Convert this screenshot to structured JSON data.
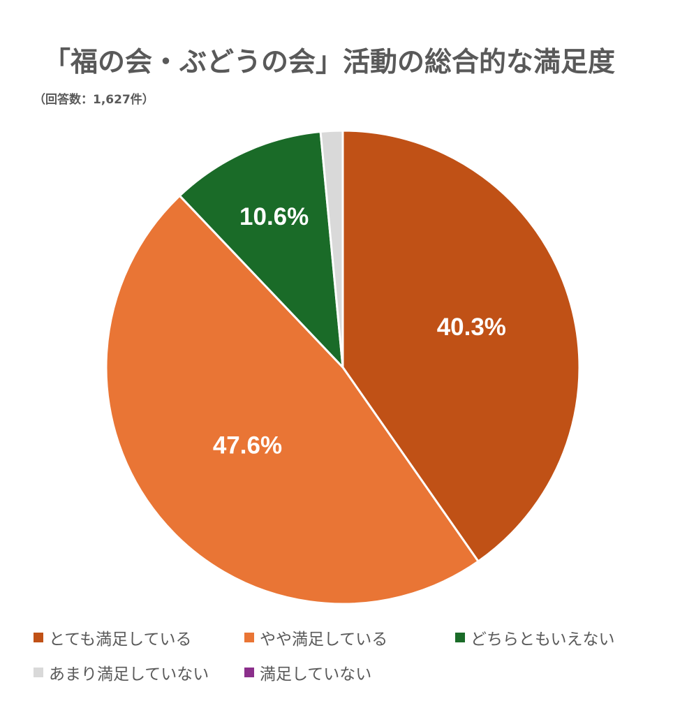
{
  "title": "「福の会・ぶどうの会」活動の総合的な満足度",
  "subtitle": "（回答数：1,627件）",
  "chart_data": {
    "type": "pie",
    "title": "「福の会・ぶどうの会」活動の総合的な満足度",
    "subtitle": "（回答数：1,627件）",
    "start": "12 o'clock, clockwise",
    "legend_position": "bottom",
    "slices": [
      {
        "label": "とても満足している",
        "value": 40.3,
        "display": "40.3%",
        "color": "#c05116"
      },
      {
        "label": "やや満足している",
        "value": 47.6,
        "display": "47.6%",
        "color": "#e97535"
      },
      {
        "label": "どちらともいえない",
        "value": 10.6,
        "display": "10.6%",
        "color": "#1a6b28"
      },
      {
        "label": "あまり満足していない",
        "value": 1.5,
        "display": "",
        "color": "#d9d9d9"
      },
      {
        "label": "満足していない",
        "value": 0.0,
        "display": "",
        "color": "#8b2f8b"
      }
    ]
  }
}
